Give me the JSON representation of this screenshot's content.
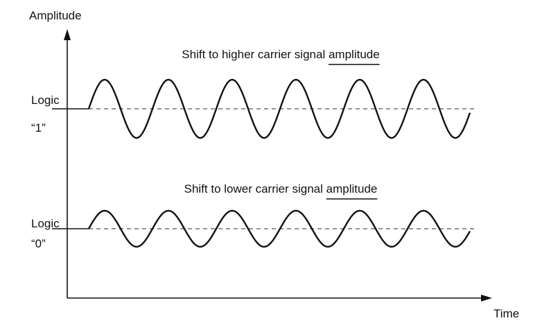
{
  "axes": {
    "y_label": "Amplitude",
    "x_label": "Time"
  },
  "signals": [
    {
      "caption": "Shift to higher carrier signal",
      "emphasis": "amplitude",
      "level_label": [
        "Logic",
        "“1”"
      ]
    },
    {
      "caption": "Shift to lower carrier signal",
      "emphasis": "amplitude",
      "level_label": [
        "Logic",
        "“0”"
      ]
    }
  ]
}
